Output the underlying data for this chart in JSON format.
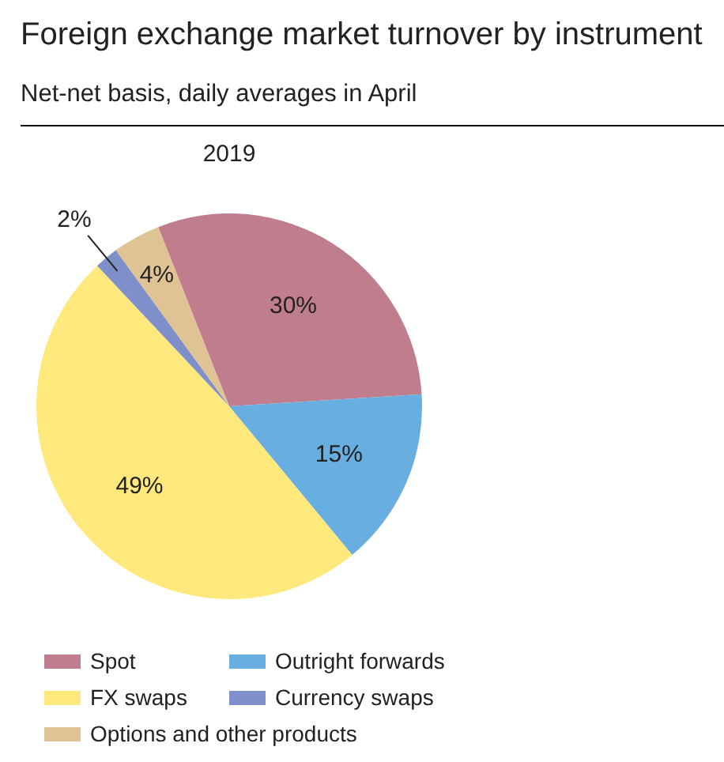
{
  "chart_data": {
    "type": "pie",
    "title": "Foreign exchange market turnover by instrument",
    "subtitle": "Net-net basis, daily averages in April",
    "annotations": [
      "2019"
    ],
    "categories": [
      "Spot",
      "Outright forwards",
      "FX swaps",
      "Currency swaps",
      "Options and other products"
    ],
    "values": [
      30,
      15,
      49,
      2,
      4
    ],
    "colors": [
      "#c07d8e",
      "#68aee1",
      "#ffe97c",
      "#7f8fca",
      "#dfc394"
    ],
    "value_labels": [
      "30%",
      "15%",
      "49%",
      "2%",
      "4%"
    ],
    "legend": "bottom"
  }
}
